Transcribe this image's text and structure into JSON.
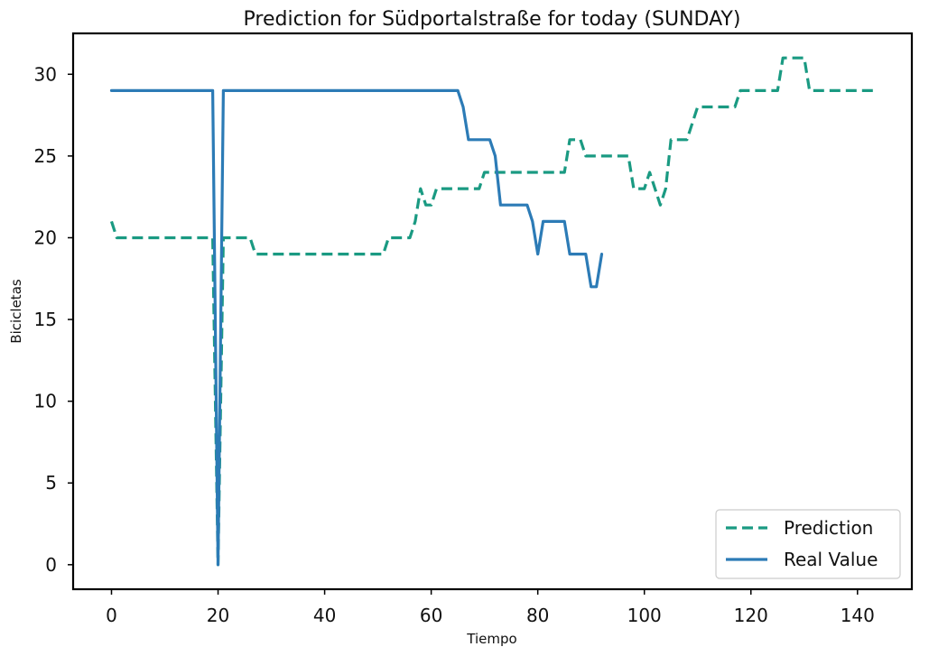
{
  "chart_data": {
    "type": "line",
    "title": "Prediction for Südportalstraße for today (SUNDAY)",
    "xlabel": "Tiempo",
    "ylabel": "Bicicletas",
    "xlim": [
      -7.2,
      150.2
    ],
    "ylim": [
      -1.5,
      32.5
    ],
    "xticks": [
      0,
      20,
      40,
      60,
      80,
      100,
      120,
      140
    ],
    "yticks": [
      0,
      5,
      10,
      15,
      20,
      25,
      30
    ],
    "grid": false,
    "legend_position": "lower-right",
    "series": [
      {
        "name": "Prediction",
        "style": "dashed",
        "color": "#1a9a82",
        "points": [
          [
            0,
            21
          ],
          [
            1,
            20
          ],
          [
            19,
            20
          ],
          [
            20,
            0
          ],
          [
            21,
            20
          ],
          [
            26,
            20
          ],
          [
            27,
            19
          ],
          [
            51,
            19
          ],
          [
            52,
            20
          ],
          [
            56,
            20
          ],
          [
            57,
            21
          ],
          [
            58,
            23
          ],
          [
            59,
            22
          ],
          [
            60,
            22
          ],
          [
            61,
            23
          ],
          [
            69,
            23
          ],
          [
            70,
            24
          ],
          [
            85,
            24
          ],
          [
            86,
            26
          ],
          [
            88,
            26
          ],
          [
            89,
            25
          ],
          [
            97,
            25
          ],
          [
            98,
            23
          ],
          [
            100,
            23
          ],
          [
            101,
            24
          ],
          [
            103,
            22
          ],
          [
            104,
            23
          ],
          [
            105,
            26
          ],
          [
            108,
            26
          ],
          [
            109,
            27
          ],
          [
            110,
            28
          ],
          [
            117,
            28
          ],
          [
            118,
            29
          ],
          [
            125,
            29
          ],
          [
            126,
            31
          ],
          [
            130,
            31
          ],
          [
            131,
            29
          ],
          [
            143,
            29
          ]
        ]
      },
      {
        "name": "Real Value",
        "style": "solid",
        "color": "#2c7bb6",
        "points": [
          [
            0,
            29
          ],
          [
            19,
            29
          ],
          [
            20,
            0
          ],
          [
            21,
            29
          ],
          [
            65,
            29
          ],
          [
            66,
            28
          ],
          [
            67,
            26
          ],
          [
            71,
            26
          ],
          [
            72,
            25
          ],
          [
            73,
            22
          ],
          [
            78,
            22
          ],
          [
            79,
            21
          ],
          [
            80,
            19
          ],
          [
            81,
            21
          ],
          [
            85,
            21
          ],
          [
            86,
            19
          ],
          [
            89,
            19
          ],
          [
            90,
            17
          ],
          [
            91,
            17
          ],
          [
            92,
            19
          ]
        ]
      }
    ]
  }
}
